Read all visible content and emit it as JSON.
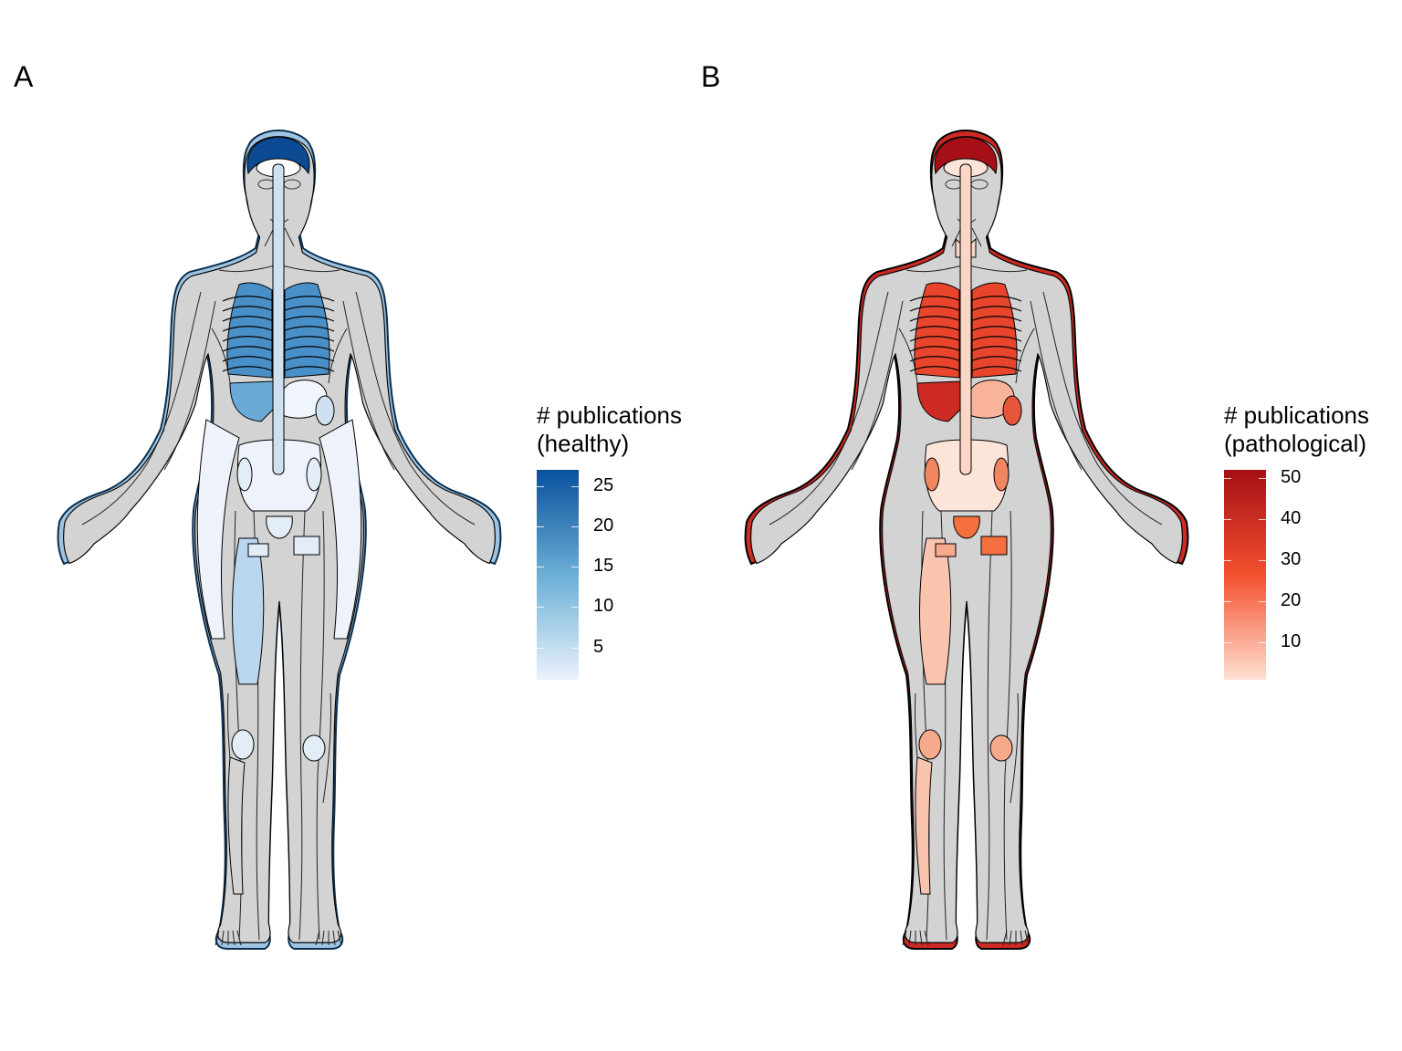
{
  "panels": [
    {
      "label": "A",
      "legend": {
        "title_line1": "# publications",
        "title_line2": "(healthy)",
        "min": 1,
        "max": 27,
        "ticks": [
          5,
          10,
          15,
          20,
          25
        ],
        "color_low": "#eaf2fb",
        "color_mid": "#6baed6",
        "color_high": "#08519c"
      },
      "fills": {
        "brain": "#0d4a94",
        "lungs": "#4a90c8",
        "heart": "#4a90c8",
        "liver": "#6aaad8",
        "stomach": "#f1f6fc",
        "spleen": "#cfe0f1",
        "intestine": "#eef3fb",
        "skin": "#9dc4e2",
        "muscle": "#bad6ee",
        "bone": "#e2edf8",
        "adipose": "#eef3fb",
        "spinal_cord": "#cfe0f1",
        "kidney": "#e2edf8",
        "other": "#d3d3d3"
      }
    },
    {
      "label": "B",
      "legend": {
        "title_line1": "# publications",
        "title_line2": "(pathological)",
        "min": 1,
        "max": 52,
        "ticks": [
          10,
          20,
          30,
          40,
          50
        ],
        "color_low": "#fee0d2",
        "color_mid": "#f4502e",
        "color_high": "#a50f15"
      },
      "fills": {
        "brain": "#a50f15",
        "lungs": "#e8452c",
        "heart": "#e8452c",
        "liver": "#cc2a23",
        "stomach": "#f9b39a",
        "spleen": "#e6553a",
        "intestine": "#fde4d8",
        "skin": "#cc2a23",
        "muscle": "#f9c4ae",
        "bone": "#f7a98c",
        "adipose": "#f4703f",
        "spinal_cord": "#fbd6c6",
        "kidney": "#f08560",
        "other": "#d3d3d3"
      }
    }
  ]
}
